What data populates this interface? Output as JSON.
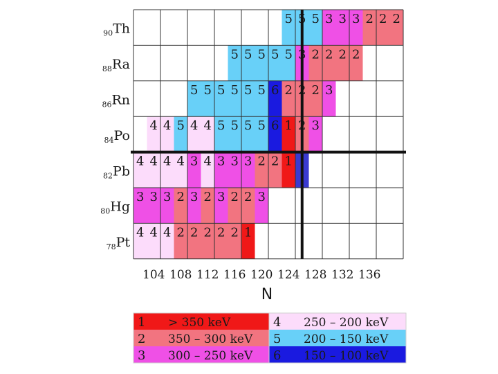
{
  "chart_data": {
    "type": "heatmap",
    "x_axis_title": "N",
    "x_ticks": [
      104,
      108,
      112,
      116,
      120,
      124,
      128,
      132,
      136
    ],
    "col_n_start": 102,
    "row_labels": [
      {
        "z": "90",
        "symbol": "Th"
      },
      {
        "z": "88",
        "symbol": "Ra"
      },
      {
        "z": "86",
        "symbol": "Rn"
      },
      {
        "z": "84",
        "symbol": "Po"
      },
      {
        "z": "82",
        "symbol": "Pb"
      },
      {
        "z": "80",
        "symbol": "Hg"
      },
      {
        "z": "78",
        "symbol": "Pt"
      }
    ],
    "rows": [
      [
        null,
        null,
        null,
        null,
        null,
        null,
        null,
        null,
        null,
        null,
        null,
        "5",
        "5",
        "5",
        "3",
        "3",
        "3",
        "2",
        "2",
        "2"
      ],
      [
        null,
        null,
        null,
        null,
        null,
        null,
        null,
        "5",
        "5",
        "5",
        "5",
        "5",
        "3",
        "2",
        "2",
        "2",
        "2",
        null,
        null,
        null
      ],
      [
        null,
        null,
        null,
        null,
        "5",
        "5",
        "5",
        "5",
        "5",
        "5",
        "6",
        "2",
        "2",
        "2",
        "3",
        null,
        null,
        null,
        null,
        null
      ],
      [
        null,
        "4",
        "4",
        "5",
        "4",
        "4",
        "5",
        "5",
        "5",
        "5",
        "6",
        "1",
        "2",
        "3",
        null,
        null,
        null,
        null,
        null,
        null
      ],
      [
        "4",
        "4",
        "4",
        "4",
        "3",
        "4",
        "3",
        "3",
        "3",
        "2",
        "2",
        "1",
        "6b",
        null,
        null,
        null,
        null,
        null,
        null,
        null
      ],
      [
        "3",
        "3",
        "3",
        "2",
        "3",
        "2",
        "3",
        "2",
        "2",
        "3",
        null,
        null,
        null,
        null,
        null,
        null,
        null,
        null,
        null,
        null
      ],
      [
        "4",
        "4",
        "4",
        "2",
        "2",
        "2",
        "2",
        "2",
        "1",
        null,
        null,
        null,
        null,
        null,
        null,
        null,
        null,
        null,
        null,
        null
      ]
    ],
    "shell_closures": {
      "Z": 82,
      "N": 126
    },
    "category_colors": {
      "1": "#f01818",
      "2": "#f27480",
      "3": "#ef50e6",
      "4": "#fcdcfb",
      "5": "#68d0f8",
      "6": "#1a1ae0",
      "6b": "#3a3ad0"
    },
    "legend": [
      {
        "key": "1",
        "range": "> 350 keV"
      },
      {
        "key": "2",
        "range": "350 – 300 keV"
      },
      {
        "key": "3",
        "range": "300 – 250 keV"
      },
      {
        "key": "4",
        "range": "250 – 200 keV"
      },
      {
        "key": "5",
        "range": "200 – 150 keV"
      },
      {
        "key": "6",
        "range": "150 – 100 keV"
      }
    ],
    "grid": true
  }
}
